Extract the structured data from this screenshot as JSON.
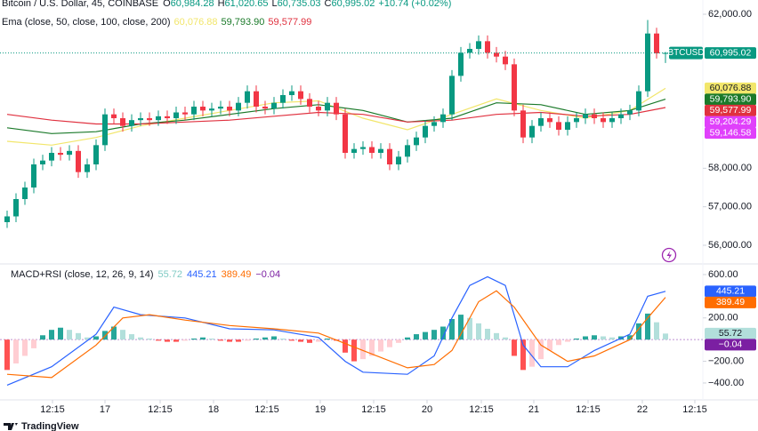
{
  "chart_data": {
    "type": "candlestick",
    "title": "Bitcoin / U.S. Dollar, 45, COINBASE",
    "legend_ohlc": [
      [
        "O",
        "60,984.28"
      ],
      [
        "H",
        "61,020.65"
      ],
      [
        "L",
        "60,735.03"
      ],
      [
        "C",
        "60,995.02"
      ]
    ],
    "change_label": "+10.74 (+0.02%)",
    "overlay_title": "Ema (close, 50, close, 100, close, 200)",
    "x": [
      0,
      1,
      2,
      3,
      4,
      5,
      6,
      7,
      8,
      9,
      10,
      11,
      12,
      13,
      14,
      15,
      16,
      17,
      18,
      19,
      20,
      21,
      22,
      23,
      24,
      25,
      26,
      27,
      28,
      29,
      30,
      31,
      32,
      33,
      34,
      35,
      36,
      37,
      38,
      39,
      40,
      41,
      42,
      43,
      44,
      45,
      46,
      47,
      48,
      49,
      50,
      51,
      52,
      53,
      54,
      55,
      56,
      57,
      58,
      59,
      60,
      61,
      62,
      63,
      64,
      65,
      66,
      67,
      68,
      69,
      70,
      71,
      72,
      73,
      74
    ],
    "open": [
      56600,
      56750,
      57200,
      57500,
      58100,
      58200,
      58400,
      58350,
      58450,
      57900,
      58100,
      58600,
      59400,
      59300,
      59100,
      59250,
      59300,
      59250,
      59350,
      59300,
      59450,
      59400,
      59600,
      59500,
      59550,
      59600,
      59500,
      59700,
      60000,
      59600,
      59550,
      59700,
      59900,
      60000,
      59800,
      59600,
      59500,
      59700,
      59400,
      58400,
      58500,
      58550,
      58400,
      58500,
      58100,
      58300,
      58600,
      58800,
      59100,
      59200,
      59400,
      60400,
      61000,
      61100,
      61300,
      61000,
      60900,
      60700,
      59500,
      58800,
      59100,
      59300,
      59200,
      59000,
      59200,
      59300,
      59400,
      59300,
      59200,
      59300,
      59400,
      59500,
      60000,
      61500,
      60984.28
    ],
    "high": [
      56900,
      57350,
      57650,
      58250,
      58350,
      58550,
      58550,
      58600,
      58600,
      58250,
      58750,
      59550,
      59550,
      59450,
      59400,
      59450,
      59450,
      59500,
      59500,
      59600,
      59600,
      59750,
      59750,
      59700,
      59750,
      59750,
      59850,
      60150,
      60150,
      59750,
      59850,
      60050,
      60150,
      60150,
      59950,
      59750,
      59850,
      59850,
      59550,
      58650,
      58700,
      58700,
      58650,
      58650,
      58450,
      58750,
      58950,
      59250,
      59350,
      59550,
      60550,
      61150,
      61250,
      61450,
      61450,
      61150,
      61050,
      60850,
      59650,
      59250,
      59450,
      59450,
      59350,
      59350,
      59450,
      59550,
      59550,
      59450,
      59450,
      59550,
      59650,
      60150,
      61850,
      61650,
      61020.65
    ],
    "low": [
      56450,
      56600,
      57050,
      57350,
      57950,
      58050,
      58200,
      58200,
      57750,
      57750,
      57950,
      58450,
      59150,
      58950,
      58950,
      59100,
      59100,
      59100,
      59150,
      59150,
      59250,
      59250,
      59350,
      59350,
      59400,
      59350,
      59350,
      59550,
      59450,
      59400,
      59400,
      59550,
      59750,
      59650,
      59450,
      59350,
      59350,
      59250,
      58250,
      58250,
      58350,
      58250,
      58250,
      57950,
      57950,
      58150,
      58450,
      58650,
      58950,
      59050,
      59250,
      60250,
      60850,
      60950,
      60850,
      60750,
      60550,
      59350,
      58650,
      58650,
      58950,
      59050,
      58850,
      58850,
      59050,
      59150,
      59150,
      59050,
      59050,
      59150,
      59250,
      59350,
      59850,
      60850,
      60735.03
    ],
    "close": [
      56750,
      57200,
      57500,
      58100,
      58200,
      58400,
      58350,
      58450,
      57900,
      58100,
      58600,
      59400,
      59300,
      59100,
      59250,
      59300,
      59250,
      59350,
      59300,
      59450,
      59400,
      59600,
      59500,
      59550,
      59600,
      59500,
      59700,
      60000,
      59600,
      59550,
      59700,
      59900,
      60000,
      59800,
      59600,
      59500,
      59700,
      59400,
      58400,
      58500,
      58550,
      58400,
      58500,
      58100,
      58300,
      58600,
      58800,
      59100,
      59200,
      59400,
      60400,
      61000,
      61100,
      61300,
      61000,
      60900,
      60700,
      59500,
      58800,
      59100,
      59300,
      59200,
      59000,
      59200,
      59300,
      59400,
      59300,
      59200,
      59300,
      59400,
      59500,
      60000,
      61500,
      60984.28,
      60995.02
    ],
    "up_color": "#089981",
    "down_color": "#f23645",
    "last_price": {
      "name": "BTCUSD",
      "value": 60995.02,
      "label": "60,995.02",
      "color": "#089981"
    },
    "overlays": [
      {
        "color": "#f2e66b",
        "label_text_color": "#131722",
        "x": [
          0,
          5,
          10,
          15,
          20,
          25,
          30,
          35,
          40,
          45,
          50,
          55,
          60,
          65,
          70,
          74
        ],
        "values": [
          58700,
          58600,
          58800,
          59100,
          59300,
          59500,
          59700,
          59750,
          59300,
          59000,
          59400,
          59800,
          59500,
          59300,
          59500,
          60076.88
        ],
        "value_label": "60,076.88"
      },
      {
        "color": "#1b7a2a",
        "label_text_color": "#ffffff",
        "x": [
          0,
          5,
          10,
          15,
          20,
          25,
          30,
          35,
          40,
          45,
          50,
          55,
          60,
          65,
          70,
          74
        ],
        "values": [
          59050,
          58900,
          58950,
          59150,
          59250,
          59400,
          59550,
          59650,
          59500,
          59200,
          59300,
          59700,
          59650,
          59400,
          59500,
          59793.9
        ],
        "value_label": "59,793.90"
      },
      {
        "color": "#e0313f",
        "label_text_color": "#ffffff",
        "x": [
          0,
          5,
          10,
          15,
          20,
          25,
          30,
          35,
          40,
          45,
          50,
          55,
          60,
          65,
          70,
          74
        ],
        "values": [
          59400,
          59250,
          59150,
          59150,
          59200,
          59250,
          59350,
          59450,
          59400,
          59200,
          59250,
          59400,
          59450,
          59350,
          59400,
          59577.99
        ],
        "value_label": "59,577.99"
      }
    ],
    "extra_price_labels": [
      {
        "value": 59204.29,
        "label": "59,204.29",
        "color": "#e040fb"
      },
      {
        "value": 59146.58,
        "label": "59,146.58",
        "color": "#e040fb"
      }
    ],
    "ylim": [
      55515,
      62370
    ],
    "yticks": [
      {
        "value": 62000,
        "label": "62,000.00"
      },
      {
        "value": 58000,
        "label": "58,000.00"
      },
      {
        "value": 57000,
        "label": "57,000.00"
      },
      {
        "value": 56000,
        "label": "56,000.00"
      }
    ],
    "xlim": [
      -0.8,
      78.2
    ],
    "xticks": [
      {
        "value": 5.1,
        "label": "12:15"
      },
      {
        "value": 11,
        "label": "17"
      },
      {
        "value": 17.2,
        "label": "12:15"
      },
      {
        "value": 23.2,
        "label": "18"
      },
      {
        "value": 29.2,
        "label": "12:15"
      },
      {
        "value": 35.2,
        "label": "19"
      },
      {
        "value": 41.2,
        "label": "12:15"
      },
      {
        "value": 47.2,
        "label": "20"
      },
      {
        "value": 53.3,
        "label": "12:15"
      },
      {
        "value": 59.2,
        "label": "21"
      },
      {
        "value": 65.3,
        "label": "12:15"
      },
      {
        "value": 71.4,
        "label": "22"
      },
      {
        "value": 77.3,
        "label": "12:15"
      }
    ],
    "panes": [
      {
        "type": "macd",
        "title": "MACD+RSI (close, 12, 26, 9, 14)",
        "ylim": [
          -556,
          698
        ],
        "yticks": [
          {
            "value": 600,
            "label": "600.00"
          },
          {
            "value": 200,
            "label": "200.00"
          },
          {
            "value": -200,
            "label": "−200.00"
          },
          {
            "value": -400,
            "label": "−400.00"
          }
        ],
        "histogram": {
          "values": [
            -280,
            -220,
            -150,
            -80,
            40,
            90,
            110,
            90,
            60,
            20,
            30,
            80,
            120,
            90,
            50,
            20,
            10,
            -10,
            -20,
            -20,
            -10,
            10,
            20,
            10,
            -10,
            -20,
            -20,
            -10,
            10,
            20,
            30,
            10,
            -10,
            -20,
            -30,
            -20,
            10,
            -10,
            -120,
            -200,
            -180,
            -150,
            -110,
            -70,
            -30,
            20,
            50,
            70,
            90,
            120,
            190,
            230,
            200,
            150,
            100,
            60,
            20,
            -150,
            -280,
            -250,
            -180,
            -100,
            -50,
            -20,
            10,
            30,
            40,
            30,
            20,
            30,
            40,
            150,
            240,
            160,
            55.72
          ],
          "value_label": "55.72",
          "color": "#b2dfdb",
          "label_text_color": "#131722",
          "palette": {
            "up_rising": "#26a69a",
            "up_falling": "#b2dfdb",
            "down_falling": "#ff5252",
            "down_rising": "#ffcdd2"
          }
        },
        "lines": [
          {
            "color": "#2962ff",
            "x": [
              0,
              5,
              10,
              12,
              15,
              20,
              25,
              30,
              35,
              38,
              40,
              45,
              48,
              50,
              52,
              54,
              56,
              58,
              60,
              63,
              66,
              70,
              72,
              74
            ],
            "values": [
              -420,
              -250,
              50,
              300,
              230,
              200,
              100,
              90,
              20,
              -200,
              -300,
              -320,
              -150,
              200,
              500,
              580,
              500,
              -50,
              -250,
              -250,
              -100,
              50,
              400,
              445.21
            ],
            "value_label": "445.21"
          },
          {
            "color": "#ff6d00",
            "x": [
              0,
              5,
              10,
              13,
              16,
              20,
              25,
              30,
              35,
              40,
              45,
              48,
              50,
              53,
              55,
              57,
              60,
              63,
              66,
              70,
              72,
              74
            ],
            "values": [
              -320,
              -350,
              -50,
              200,
              230,
              180,
              130,
              100,
              60,
              -100,
              -260,
              -230,
              -100,
              350,
              450,
              300,
              -50,
              -200,
              -150,
              0,
              200,
              389.49
            ],
            "value_label": "389.49"
          }
        ],
        "extra_labels": [
          {
            "value": -0.04,
            "label": "−0.04",
            "color": "#7b1fa2"
          }
        ]
      }
    ],
    "footer": "TradingView"
  }
}
